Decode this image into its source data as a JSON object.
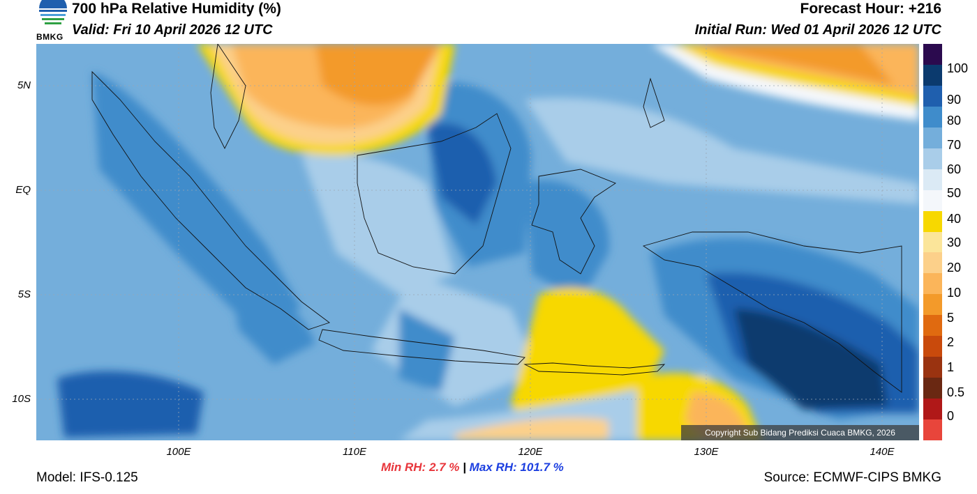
{
  "header": {
    "logo_text": "BMKG",
    "title": "700 hPa Relative Humidity (%)",
    "valid": "Valid: Fri 10 April 2026 12 UTC",
    "forecast_hour": "Forecast Hour: +216",
    "initial_run": "Initial Run: Wed 01 April 2026 12 UTC"
  },
  "axes": {
    "lat_labels": [
      "5N",
      "EQ",
      "5S",
      "10S"
    ],
    "lon_labels": [
      "100E",
      "110E",
      "120E",
      "130E",
      "140E"
    ]
  },
  "colorbar": {
    "labels": [
      "100",
      "90",
      "80",
      "70",
      "60",
      "50",
      "40",
      "30",
      "20",
      "10",
      "5",
      "2",
      "1",
      "0.5",
      "0"
    ],
    "colors": [
      "#2b0a4e",
      "#0b3a6e",
      "#1f5fae",
      "#3f8ccb",
      "#74aedb",
      "#a9cde9",
      "#dbeaf5",
      "#f4f7fb",
      "#f7d800",
      "#fbe59a",
      "#fcd08a",
      "#fbb55a",
      "#f39a2a",
      "#e06a10",
      "#c94a0c",
      "#9a3310",
      "#6a2812",
      "#b01818",
      "#e8453b"
    ]
  },
  "stats": {
    "min_label": "Min RH:",
    "min_value": "2.7 %",
    "separator": "|",
    "max_label": "Max RH:",
    "max_value": "101.7 %"
  },
  "footer": {
    "model": "Model: IFS-0.125",
    "source": "Source: ECMWF-CIPS BMKG",
    "copyright": "Copyright Sub Bidang Prediksi Cuaca BMKG, 2026"
  }
}
